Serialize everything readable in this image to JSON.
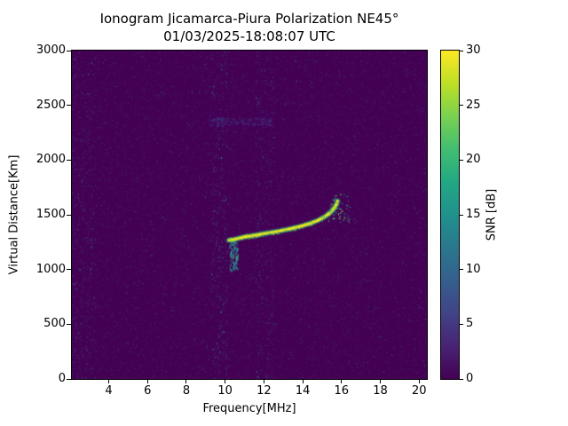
{
  "figure": {
    "title": "Ionogram Jicamarca-Piura Polarization NE45°",
    "subtitle": "01/03/2025-18:08:07 UTC"
  },
  "chart_data": {
    "type": "heatmap",
    "title": "Ionogram Jicamarca-Piura Polarization NE45°",
    "subtitle": "01/03/2025-18:08:07 UTC",
    "xlabel": "Frequency[MHz]",
    "ylabel": "Virtual Distance[Km]",
    "xlim": [
      2.1,
      20.4
    ],
    "ylim": [
      0,
      3000
    ],
    "xticks": [
      4,
      6,
      8,
      10,
      12,
      14,
      16,
      18,
      20
    ],
    "yticks": [
      0,
      500,
      1000,
      1500,
      2000,
      2500,
      3000
    ],
    "grid": false,
    "colormap": "viridis",
    "background_value_db": 0,
    "colorbar": {
      "label": "SNR [dB]",
      "ticks": [
        0,
        5,
        10,
        15,
        20,
        25,
        30
      ],
      "min": 0,
      "max": 30,
      "position": "right"
    },
    "echo_trace": {
      "description": "ionospheric echo trace",
      "snr_db": 30,
      "points_mhz_km": [
        [
          10.2,
          1268
        ],
        [
          10.4,
          1272
        ],
        [
          10.7,
          1285
        ],
        [
          11.0,
          1297
        ],
        [
          11.3,
          1306
        ],
        [
          11.6,
          1315
        ],
        [
          12.0,
          1328
        ],
        [
          12.4,
          1340
        ],
        [
          12.8,
          1352
        ],
        [
          13.2,
          1366
        ],
        [
          13.6,
          1382
        ],
        [
          14.0,
          1400
        ],
        [
          14.4,
          1422
        ],
        [
          14.8,
          1450
        ],
        [
          15.1,
          1478
        ],
        [
          15.35,
          1510
        ],
        [
          15.55,
          1545
        ],
        [
          15.7,
          1585
        ],
        [
          15.8,
          1625
        ]
      ]
    },
    "leading_edge_scatter": {
      "x_range_mhz": [
        10.2,
        10.65
      ],
      "y_range_km": [
        1000,
        1280
      ],
      "snr_db_range": [
        8,
        22
      ]
    },
    "tail_scatter": {
      "x_range_mhz": [
        15.3,
        16.4
      ],
      "y_range_km": [
        1430,
        1690
      ],
      "snr_db_range": [
        10,
        28
      ]
    },
    "rfi_bands_mhz": [
      {
        "range": [
          2.1,
          3.3
        ],
        "max_db": 8
      },
      {
        "range": [
          9.25,
          10.1
        ],
        "max_db": 12
      },
      {
        "range": [
          11.55,
          11.95
        ],
        "max_db": 9
      },
      {
        "range": [
          12.05,
          12.5
        ],
        "max_db": 7
      }
    ],
    "noise_band_horizontal": {
      "y_km": [
        2320,
        2390
      ],
      "x_mhz": [
        9.2,
        12.4
      ],
      "max_db": 8
    }
  },
  "colors": {
    "figure_background": "#ffffff",
    "plot_background": "#440154",
    "trace_core": "#f0e51b",
    "axis": "#000000",
    "viridis_stops": [
      "#440154",
      "#482475",
      "#414487",
      "#355f8d",
      "#2a788e",
      "#21918c",
      "#22a884",
      "#42be71",
      "#7ad151",
      "#bddf26",
      "#fde725"
    ]
  }
}
